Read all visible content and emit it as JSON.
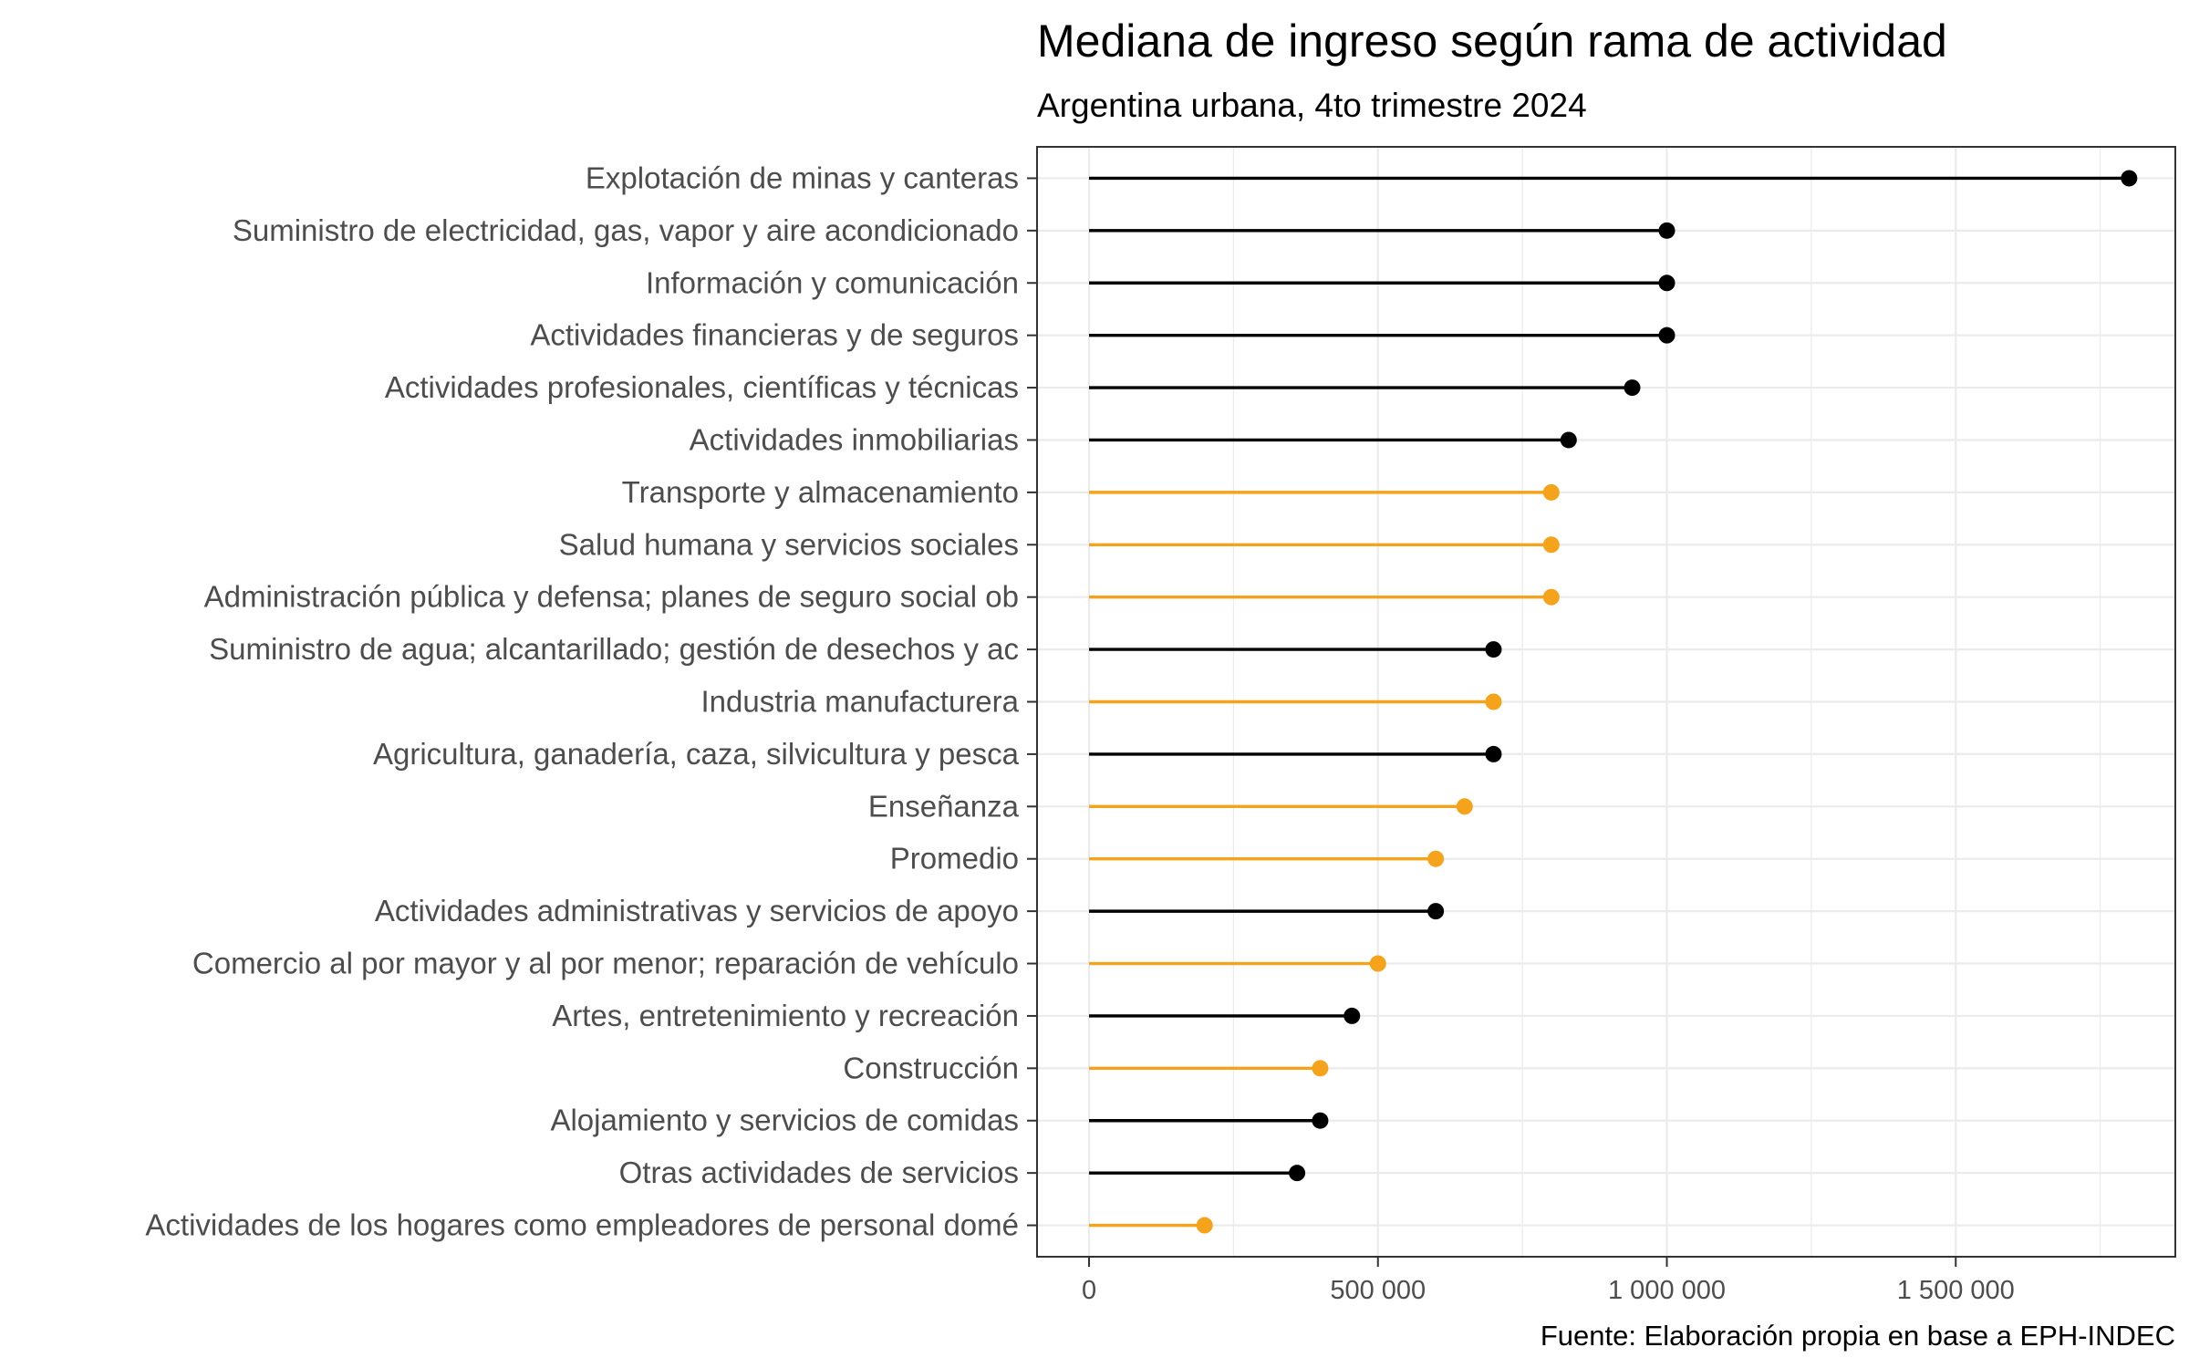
{
  "chart_data": {
    "type": "lollipop",
    "title": "Mediana de ingreso según rama de actividad",
    "subtitle": "Argentina urbana, 4to trimestre 2024",
    "caption": "Fuente: Elaboración propia en base a EPH-INDEC",
    "xlim": [
      -90000,
      1880000
    ],
    "xticks": [
      0,
      500000,
      1000000,
      1500000
    ],
    "xtick_labels": [
      "0",
      "500 000",
      "1 000 000",
      "1 500 000"
    ],
    "grid": true,
    "colors": {
      "highlight": "#F5A31A",
      "default": "#000000"
    },
    "categories": [
      "Explotación de minas y canteras",
      "Suministro de electricidad, gas, vapor y aire acondicionado",
      "Información y comunicación",
      "Actividades financieras y de seguros",
      "Actividades profesionales, científicas y técnicas",
      "Actividades inmobiliarias",
      "Transporte y almacenamiento",
      "Salud humana y servicios sociales",
      "Administración pública y defensa; planes de seguro social ob",
      "Suministro de agua; alcantarillado; gestión de desechos y ac",
      "Industria manufacturera",
      "Agricultura, ganadería, caza, silvicultura y pesca",
      "Enseñanza",
      "Promedio",
      "Actividades administrativas y servicios de apoyo",
      "Comercio al por mayor y al por menor; reparación de vehículo",
      "Artes, entretenimiento y recreación",
      "Construcción",
      "Alojamiento y servicios de comidas",
      "Otras actividades de servicios",
      "Actividades de los hogares como empleadores de personal domé"
    ],
    "values": [
      1800000,
      1000000,
      1000000,
      1000000,
      940000,
      830000,
      800000,
      800000,
      800000,
      700000,
      700000,
      700000,
      650000,
      600000,
      600000,
      500000,
      455000,
      400000,
      400000,
      360000,
      200000
    ],
    "highlighted": [
      false,
      false,
      false,
      false,
      false,
      false,
      true,
      true,
      true,
      false,
      true,
      false,
      true,
      true,
      false,
      true,
      false,
      true,
      false,
      false,
      true
    ]
  }
}
